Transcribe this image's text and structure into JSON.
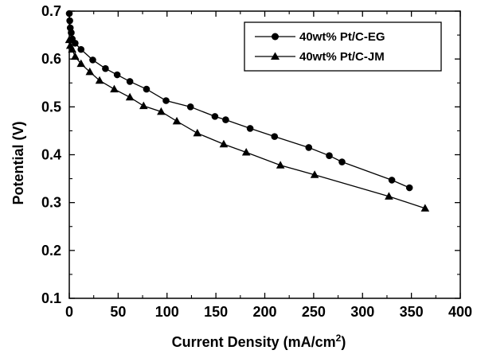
{
  "chart_data": {
    "type": "line",
    "xlabel": "Current Density (mA/cm",
    "xlabel_sup": "2",
    "xlabel_close": ")",
    "ylabel": "Potential (V)",
    "xlim": [
      0,
      400
    ],
    "ylim": [
      0.1,
      0.7
    ],
    "xticks": [
      0,
      50,
      100,
      150,
      200,
      250,
      300,
      350,
      400
    ],
    "yticks": [
      0.1,
      0.2,
      0.3,
      0.4,
      0.5,
      0.6,
      0.7
    ],
    "xtick_labels": [
      "0",
      "50",
      "100",
      "150",
      "200",
      "250",
      "300",
      "350",
      "400"
    ],
    "ytick_labels": [
      "0.1",
      "0.2",
      "0.3",
      "0.4",
      "0.5",
      "0.6",
      "0.7"
    ],
    "grid": false,
    "legend_position": "top-right",
    "series": [
      {
        "name": "40wt% Pt/C-EG",
        "marker": "circle",
        "color": "#000000",
        "x": [
          0,
          0.5,
          1,
          2,
          3,
          6,
          12,
          24,
          37,
          49,
          62,
          79,
          99,
          124,
          149,
          160,
          185,
          210,
          245,
          266,
          279,
          330,
          348
        ],
        "y": [
          0.695,
          0.68,
          0.665,
          0.655,
          0.642,
          0.633,
          0.62,
          0.598,
          0.58,
          0.567,
          0.553,
          0.537,
          0.513,
          0.5,
          0.48,
          0.473,
          0.455,
          0.438,
          0.415,
          0.398,
          0.385,
          0.347,
          0.331
        ]
      },
      {
        "name": "40wt% Pt/C-JM",
        "marker": "triangle",
        "color": "#000000",
        "x": [
          0,
          1,
          3,
          6,
          12,
          21,
          31,
          46,
          62,
          76,
          94,
          110,
          131,
          158,
          181,
          216,
          251,
          327,
          364
        ],
        "y": [
          0.64,
          0.628,
          0.62,
          0.605,
          0.59,
          0.573,
          0.555,
          0.537,
          0.52,
          0.502,
          0.49,
          0.47,
          0.445,
          0.422,
          0.405,
          0.378,
          0.358,
          0.313,
          0.288
        ]
      }
    ]
  }
}
